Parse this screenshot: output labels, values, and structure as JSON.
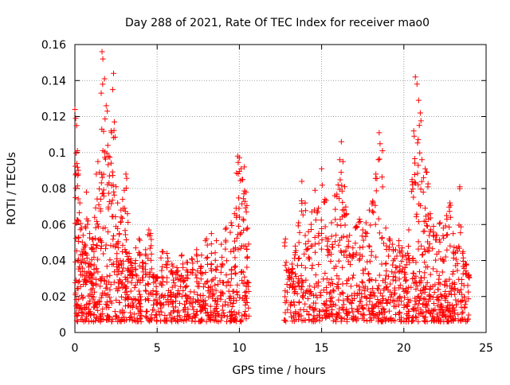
{
  "chart_data": {
    "type": "scatter",
    "title": "Day 288 of 2021, Rate Of TEC Index for receiver mao0",
    "xlabel": "GPS time / hours",
    "ylabel": "ROTI / TECUs",
    "xlim": [
      0,
      25
    ],
    "ylim": [
      0,
      0.16
    ],
    "x_ticks": [
      0,
      5,
      10,
      15,
      20,
      25
    ],
    "y_ticks": [
      0,
      0.02,
      0.04,
      0.06,
      0.08,
      0.1,
      0.12,
      0.14,
      0.16
    ],
    "x_tick_labels": [
      "0",
      "5",
      "10",
      "15",
      "20",
      "25"
    ],
    "y_tick_labels": [
      "0",
      "0.02",
      "0.04",
      "0.06",
      "0.08",
      "0.1",
      "0.12",
      "0.14",
      "0.16"
    ],
    "grid": true,
    "marker": "+",
    "color": "#ff0000",
    "data_gap_hours": [
      10.6,
      12.7
    ],
    "series": [
      {
        "x": [
          0.0,
          0.05,
          0.1,
          0.15,
          0.2,
          0.3,
          0.4,
          0.5,
          0.6,
          0.7,
          0.8,
          0.9,
          1.0,
          1.1,
          1.2,
          1.3,
          1.4,
          1.5,
          1.6,
          1.65,
          1.7,
          1.8,
          1.9,
          2.0,
          2.1,
          2.2,
          2.3,
          2.35,
          2.4,
          2.5,
          2.6,
          2.7,
          2.8,
          2.9,
          3.0,
          3.1,
          3.2,
          3.3,
          3.4,
          3.5,
          3.7,
          3.9,
          4.1,
          4.3,
          4.5,
          4.6,
          4.8,
          5.0,
          5.3,
          5.6,
          5.9,
          6.2,
          6.5,
          6.8,
          7.1,
          7.4,
          7.7,
          8.0,
          8.3,
          8.6,
          8.9,
          9.2,
          9.5,
          9.7,
          9.8,
          9.9,
          10.0,
          10.1,
          10.2,
          10.3,
          10.4,
          10.5,
          12.8,
          13.0,
          13.2,
          13.4,
          13.6,
          13.8,
          14.0,
          14.2,
          14.4,
          14.6,
          14.8,
          15.0,
          15.2,
          15.4,
          15.6,
          15.8,
          16.0,
          16.1,
          16.2,
          16.3,
          16.4,
          16.5,
          16.7,
          16.9,
          17.1,
          17.3,
          17.5,
          17.7,
          17.9,
          18.1,
          18.3,
          18.5,
          18.7,
          18.9,
          19.1,
          19.3,
          19.5,
          19.7,
          19.9,
          20.1,
          20.3,
          20.5,
          20.6,
          20.7,
          20.8,
          20.9,
          21.0,
          21.1,
          21.2,
          21.3,
          21.4,
          21.5,
          21.6,
          21.8,
          22.0,
          22.2,
          22.4,
          22.6,
          22.8,
          23.0,
          23.2,
          23.4,
          23.6,
          23.8,
          23.95
        ],
        "y": [
          0.124,
          0.119,
          0.115,
          0.101,
          0.088,
          0.072,
          0.058,
          0.054,
          0.049,
          0.078,
          0.062,
          0.055,
          0.047,
          0.052,
          0.064,
          0.088,
          0.095,
          0.089,
          0.133,
          0.156,
          0.152,
          0.141,
          0.126,
          0.104,
          0.087,
          0.112,
          0.135,
          0.144,
          0.117,
          0.081,
          0.072,
          0.055,
          0.068,
          0.074,
          0.079,
          0.088,
          0.066,
          0.044,
          0.041,
          0.036,
          0.047,
          0.052,
          0.039,
          0.046,
          0.057,
          0.055,
          0.032,
          0.031,
          0.045,
          0.044,
          0.038,
          0.036,
          0.043,
          0.039,
          0.041,
          0.046,
          0.043,
          0.052,
          0.055,
          0.051,
          0.049,
          0.058,
          0.061,
          0.066,
          0.069,
          0.098,
          0.097,
          0.091,
          0.085,
          0.092,
          0.078,
          0.058,
          0.052,
          0.035,
          0.038,
          0.048,
          0.061,
          0.084,
          0.072,
          0.056,
          0.067,
          0.079,
          0.069,
          0.091,
          0.074,
          0.052,
          0.061,
          0.076,
          0.082,
          0.096,
          0.106,
          0.095,
          0.081,
          0.066,
          0.054,
          0.047,
          0.059,
          0.063,
          0.057,
          0.061,
          0.068,
          0.073,
          0.088,
          0.111,
          0.101,
          0.058,
          0.052,
          0.049,
          0.046,
          0.051,
          0.047,
          0.043,
          0.057,
          0.085,
          0.112,
          0.142,
          0.138,
          0.129,
          0.122,
          0.096,
          0.086,
          0.091,
          0.089,
          0.063,
          0.066,
          0.059,
          0.054,
          0.061,
          0.058,
          0.065,
          0.072,
          0.055,
          0.047,
          0.081,
          0.045,
          0.038,
          0.032
        ]
      }
    ],
    "band": {
      "note": "dense floor of points between roughly 0.005 and 0.03 across all data hours",
      "low": 0.006,
      "high": 0.03
    }
  }
}
